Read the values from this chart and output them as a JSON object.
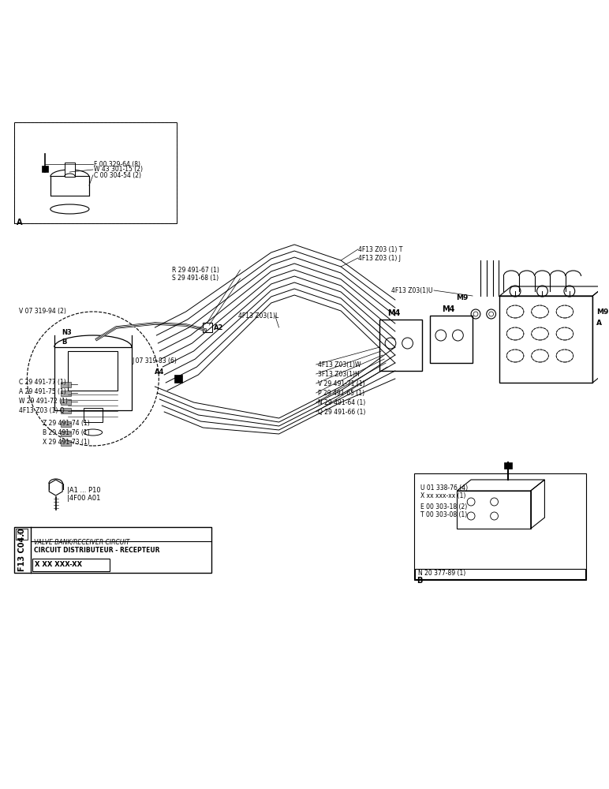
{
  "bg_color": "#ffffff",
  "title": "F13 C04.0",
  "fig_width": 7.72,
  "fig_height": 10.0,
  "box_A_label": "A",
  "box_A_parts": [
    "F 00 329-64 (8)",
    "W 43 301-15 (2)",
    "C 00 304-54 (2)"
  ],
  "box_B_label": "B",
  "box_B_parts": [
    "U 01 338-76 (4)",
    "X xx xxx-xx (1)",
    "E 00 303-18 (2)",
    "T 00 303-08 (1)",
    "N 20 377-89 (1)"
  ],
  "bottom_part_number": "X XX XXX-XX",
  "bottom_text1": "CIRCUIT DISTRIBUTEUR - RECEPTEUR",
  "bottom_text2": "VALVE BANK/RECEIVER CIRCUIT",
  "label_V07": "V 07 319-94 (2)",
  "label_N3": "N3",
  "label_B": "B",
  "label_C29_77": "C 29 491-77 (1)",
  "label_A29_75": "A 29 491-75 (1)",
  "label_W29_72": "W 29 491-72 (1)",
  "label_4F13_Q": "4F13 Z03 (1) Q",
  "label_Z29_74": "Z 29 491-74 (1)",
  "label_B29_76": "B 29 491-76 (1)",
  "label_X29_73": "X 29 491-73 (1)",
  "label_R29_67": "R 29 491-67 (1)",
  "label_S29_68": "S 29 491-68 (1)",
  "label_J07": "J 07 319-83 (6)",
  "label_4F13_L": "4F13 Z03(1)L",
  "label_4F13_T": "4F13 Z03 (1) T",
  "label_4F13_J": "4F13 Z03 (1) J",
  "label_4F13_U": "4F13 Z03(1)U",
  "label_4F13_W": "4F13 Z03(1)W",
  "label_3F13_H": "3F13 Z03(1)H",
  "label_V29_71": "V 29 491-71 (1)",
  "label_P29_65": "P 29 491-65 (1)",
  "label_N29_64": "N 29 491-64 (1)",
  "label_Q29_66": "Q 29 491-66 (1)",
  "label_A1_P10": "|A1 ... P10",
  "label_4F00": "|4F00 A01",
  "label_A2": "A2",
  "label_A4": "A4",
  "label_M4": "M4",
  "label_M4b": "M4",
  "label_M9a": "M9",
  "label_M9b": "M9",
  "label_A": "A"
}
